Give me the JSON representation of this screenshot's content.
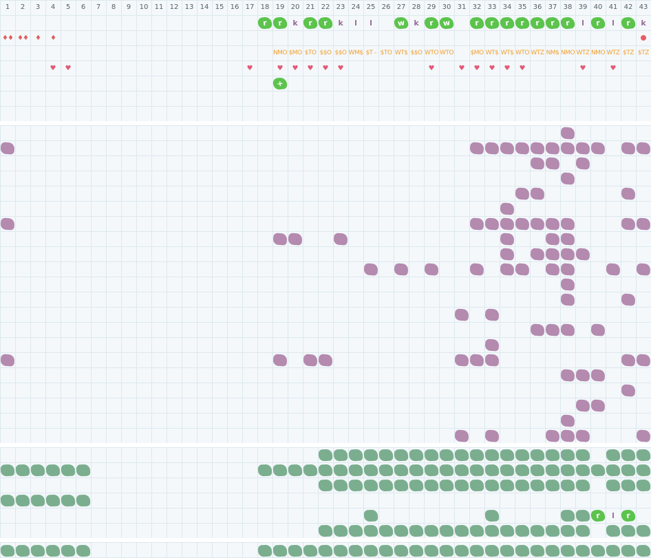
{
  "columns": [
    "1",
    "2",
    "3",
    "4",
    "5",
    "6",
    "7",
    "8",
    "9",
    "10",
    "11",
    "12",
    "13",
    "14",
    "15",
    "16",
    "17",
    "18",
    "19",
    "20",
    "21",
    "22",
    "23",
    "24",
    "25",
    "26",
    "27",
    "28",
    "29",
    "30",
    "31",
    "32",
    "33",
    "34",
    "35",
    "36",
    "37",
    "38",
    "39",
    "40",
    "41",
    "42",
    "43"
  ],
  "icons": {
    "drop": "water-drop-icon",
    "heart": "heart-icon",
    "dot": "red-dot-icon",
    "green_blob": "green-leaf-blob",
    "purple_blob": "purple-blob",
    "teal_blob": "teal-blob"
  },
  "colors": {
    "green": "#5cc34c",
    "purple": "#b084ab",
    "teal": "#7bae8e",
    "orange": "#f0a030",
    "red": "#e25a78"
  },
  "top": {
    "row1": [
      {
        "c": 18,
        "k": "g",
        "t": "r"
      },
      {
        "c": 19,
        "k": "g",
        "t": "r"
      },
      {
        "c": 20,
        "k": "k",
        "t": "k"
      },
      {
        "c": 21,
        "k": "g",
        "t": "r"
      },
      {
        "c": 22,
        "k": "g",
        "t": "r"
      },
      {
        "c": 23,
        "k": "k",
        "t": "k"
      },
      {
        "c": 24,
        "k": "k",
        "t": "l"
      },
      {
        "c": 25,
        "k": "k",
        "t": "l"
      },
      {
        "c": 27,
        "k": "g",
        "t": "w"
      },
      {
        "c": 28,
        "k": "k",
        "t": "k"
      },
      {
        "c": 29,
        "k": "g",
        "t": "r"
      },
      {
        "c": 30,
        "k": "g",
        "t": "w"
      },
      {
        "c": 32,
        "k": "g",
        "t": "r"
      },
      {
        "c": 33,
        "k": "g",
        "t": "r"
      },
      {
        "c": 34,
        "k": "g",
        "t": "r"
      },
      {
        "c": 35,
        "k": "g",
        "t": "r"
      },
      {
        "c": 36,
        "k": "g",
        "t": "r"
      },
      {
        "c": 37,
        "k": "g",
        "t": "r"
      },
      {
        "c": 38,
        "k": "g",
        "t": "r"
      },
      {
        "c": 39,
        "k": "k",
        "t": "l"
      },
      {
        "c": 40,
        "k": "g",
        "t": "r"
      },
      {
        "c": 41,
        "k": "k",
        "t": "l"
      },
      {
        "c": 42,
        "k": "g",
        "t": "r"
      },
      {
        "c": 43,
        "k": "k",
        "t": "k"
      }
    ],
    "row2": [
      {
        "c": 1,
        "k": "dr",
        "t": "♦♦"
      },
      {
        "c": 2,
        "k": "dr",
        "t": "♦♦"
      },
      {
        "c": 3,
        "k": "dr",
        "t": "♦"
      },
      {
        "c": 4,
        "k": "dr",
        "t": "♦"
      },
      {
        "c": 43,
        "k": "dot",
        "t": ""
      }
    ],
    "row3": [
      {
        "c": 19,
        "k": "code",
        "t": "NMO"
      },
      {
        "c": 20,
        "k": "code",
        "t": "$MO"
      },
      {
        "c": 21,
        "k": "code",
        "t": "$TO"
      },
      {
        "c": 22,
        "k": "code",
        "t": "$$O"
      },
      {
        "c": 23,
        "k": "code",
        "t": "$$O"
      },
      {
        "c": 24,
        "k": "code",
        "t": "WM$"
      },
      {
        "c": 25,
        "k": "code",
        "t": "$T -"
      },
      {
        "c": 26,
        "k": "code",
        "t": "$TO"
      },
      {
        "c": 27,
        "k": "code",
        "t": "WT$"
      },
      {
        "c": 28,
        "k": "code",
        "t": "$$O"
      },
      {
        "c": 29,
        "k": "code",
        "t": "WTO"
      },
      {
        "c": 30,
        "k": "code",
        "t": "WTO"
      },
      {
        "c": 32,
        "k": "code",
        "t": "$MO"
      },
      {
        "c": 33,
        "k": "code",
        "t": "WT$"
      },
      {
        "c": 34,
        "k": "code",
        "t": "WT$"
      },
      {
        "c": 35,
        "k": "code",
        "t": "WTO"
      },
      {
        "c": 36,
        "k": "code",
        "t": "WTZ"
      },
      {
        "c": 37,
        "k": "code",
        "t": "NM$"
      },
      {
        "c": 38,
        "k": "code",
        "t": "NMO"
      },
      {
        "c": 39,
        "k": "code",
        "t": "WTZ"
      },
      {
        "c": 40,
        "k": "code",
        "t": "NMO"
      },
      {
        "c": 41,
        "k": "code",
        "t": "WTZ"
      },
      {
        "c": 42,
        "k": "code",
        "t": "$TZ"
      },
      {
        "c": 43,
        "k": "code",
        "t": "$TZ"
      }
    ],
    "row4": [
      {
        "c": 4,
        "k": "hr",
        "t": "♥"
      },
      {
        "c": 5,
        "k": "hr",
        "t": "♥"
      },
      {
        "c": 17,
        "k": "hr",
        "t": "♥"
      },
      {
        "c": 19,
        "k": "hr",
        "t": "♥"
      },
      {
        "c": 20,
        "k": "hr",
        "t": "♥"
      },
      {
        "c": 21,
        "k": "hr",
        "t": "♥"
      },
      {
        "c": 22,
        "k": "hr",
        "t": "♥"
      },
      {
        "c": 23,
        "k": "hr",
        "t": "♥"
      },
      {
        "c": 29,
        "k": "hr",
        "t": "♥"
      },
      {
        "c": 31,
        "k": "hr",
        "t": "♥"
      },
      {
        "c": 32,
        "k": "hr",
        "t": "♥"
      },
      {
        "c": 33,
        "k": "hr",
        "t": "♥"
      },
      {
        "c": 34,
        "k": "hr",
        "t": "♥"
      },
      {
        "c": 35,
        "k": "hr",
        "t": "♥"
      },
      {
        "c": 39,
        "k": "hr",
        "t": "♥"
      },
      {
        "c": 41,
        "k": "hr",
        "t": "♥"
      }
    ],
    "row5": [
      {
        "c": 19,
        "k": "g",
        "t": "+"
      }
    ]
  },
  "purple_rows": [
    [
      38
    ],
    [
      1,
      32,
      33,
      34,
      35,
      36,
      37,
      38,
      39,
      40,
      42,
      43
    ],
    [
      36,
      37,
      39
    ],
    [
      38
    ],
    [
      35,
      36,
      42
    ],
    [
      34
    ],
    [
      1,
      32,
      33,
      34,
      35,
      36,
      37,
      38,
      42,
      43
    ],
    [
      19,
      20,
      23,
      34,
      37,
      38
    ],
    [
      34,
      36,
      37,
      38,
      39
    ],
    [
      25,
      27,
      29,
      32,
      34,
      35,
      37,
      38,
      41,
      43
    ],
    [
      38
    ],
    [
      38,
      42
    ],
    [
      31,
      33
    ],
    [
      36,
      37,
      38,
      40
    ],
    [
      33
    ],
    [
      1,
      19,
      21,
      22,
      31,
      32,
      33,
      42,
      43
    ],
    [
      38,
      39,
      40
    ],
    [
      42
    ],
    [
      39,
      40
    ],
    [
      38
    ],
    [
      31,
      33,
      37,
      38,
      39,
      43
    ]
  ],
  "teal_rows": [
    [
      22,
      23,
      24,
      25,
      26,
      27,
      28,
      29,
      30,
      31,
      32,
      33,
      34,
      35,
      36,
      37,
      38,
      39,
      41,
      42,
      43
    ],
    [
      1,
      2,
      3,
      4,
      5,
      6,
      18,
      19,
      20,
      21,
      22,
      23,
      24,
      25,
      26,
      27,
      28,
      29,
      30,
      31,
      32,
      33,
      34,
      35,
      36,
      37,
      38,
      39,
      40,
      41,
      42,
      43
    ],
    [
      22,
      23,
      24,
      25,
      26,
      27,
      28,
      29,
      30,
      31,
      32,
      33,
      34,
      35,
      36,
      37,
      38,
      39,
      41,
      42,
      43
    ],
    [
      1,
      2,
      3,
      4,
      5,
      6
    ],
    [
      25,
      33,
      38,
      39
    ],
    [
      22,
      23,
      24,
      25,
      26,
      27,
      28,
      29,
      30,
      31,
      32,
      33,
      34,
      35,
      36,
      37,
      38,
      39,
      41,
      42,
      43
    ]
  ],
  "teal_special": [
    {
      "row": 4,
      "c": 40,
      "k": "g",
      "t": "r"
    },
    {
      "row": 4,
      "c": 41,
      "k": "kl",
      "t": "l"
    },
    {
      "row": 4,
      "c": 42,
      "k": "g",
      "t": "r"
    }
  ],
  "bottom_row": [
    1,
    2,
    3,
    4,
    5,
    6,
    18,
    19,
    20,
    21,
    22,
    23,
    24,
    25,
    26,
    27,
    28,
    29,
    30,
    31,
    32,
    33,
    34,
    35,
    36,
    37,
    38,
    39,
    40,
    41,
    42,
    43
  ]
}
